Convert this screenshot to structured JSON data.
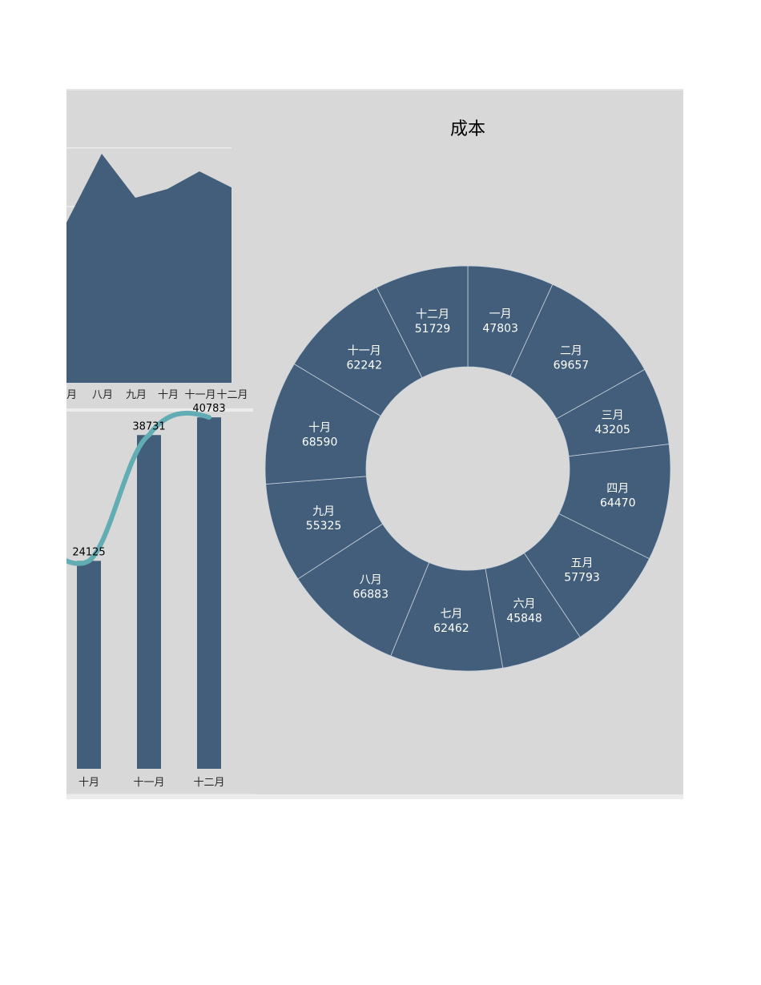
{
  "colors": {
    "background": "#d8d8d9",
    "series": "#425e7a",
    "line": "#62adb3",
    "grid": "#f2f2f2"
  },
  "chart_data": [
    {
      "type": "area",
      "categories": [
        "七月",
        "八月",
        "九月",
        "十月",
        "十一月",
        "十二月"
      ],
      "values": [
        54000,
        78000,
        63000,
        66000,
        72000,
        66500
      ],
      "ylim": [
        0,
        90000
      ],
      "grid": true
    },
    {
      "type": "bar",
      "categories": [
        "十月",
        "十一月",
        "十二月"
      ],
      "series": [
        {
          "type": "bar",
          "values": [
            24125,
            38731,
            40783
          ]
        },
        {
          "type": "line",
          "values": [
            24125,
            38731,
            40783
          ]
        }
      ],
      "data_labels": [
        "24125",
        "38731",
        "40783"
      ],
      "ylim": [
        0,
        50000
      ]
    },
    {
      "type": "pie",
      "title": "成本",
      "donut": true,
      "categories": [
        "一月",
        "二月",
        "三月",
        "四月",
        "五月",
        "六月",
        "七月",
        "八月",
        "九月",
        "十月",
        "十一月",
        "十二月"
      ],
      "values": [
        47803,
        69657,
        43205,
        64470,
        57793,
        45848,
        62462,
        66883,
        55325,
        68590,
        62242,
        51729
      ]
    }
  ]
}
